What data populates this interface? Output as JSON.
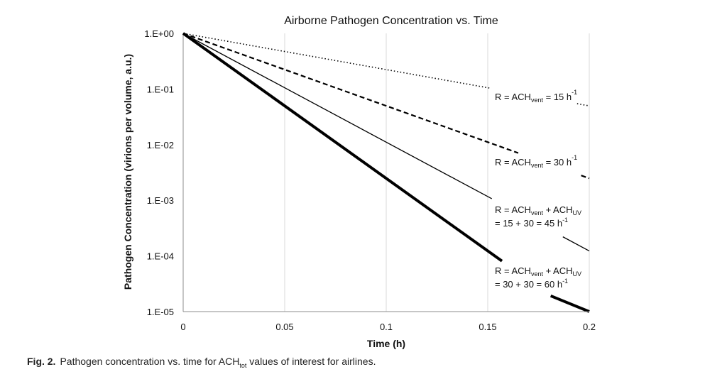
{
  "caption": {
    "label": "Fig. 2.",
    "text_before": "Pathogen concentration vs. time for ACH",
    "text_sub": "tot",
    "text_after": " values of interest for airlines."
  },
  "chart_data": {
    "type": "line",
    "title": "Airborne Pathogen Concentration vs. Time",
    "xlabel": "Time (h)",
    "ylabel": "Pathogen Concentration (virions per volume, a.u.)",
    "xlim": [
      0,
      0.2
    ],
    "ylim": [
      1e-05,
      1
    ],
    "y_scale": "log",
    "x_ticks": [
      0,
      0.05,
      0.1,
      0.15,
      0.2
    ],
    "x_tick_labels": [
      "0",
      "0.05",
      "0.1",
      "0.15",
      "0.2"
    ],
    "y_ticks": [
      1,
      0.1,
      0.01,
      0.001,
      0.0001,
      1e-05
    ],
    "y_tick_labels": [
      "1.E+00",
      "1.E-01",
      "1.E-02",
      "1.E-03",
      "1.E-04",
      "1.E-05"
    ],
    "grid": "vertical",
    "series": [
      {
        "rate": 15,
        "style": "dotted",
        "width": 1.6,
        "x": [
          0,
          0.2
        ],
        "y": [
          1,
          0.0498
        ]
      },
      {
        "rate": 30,
        "style": "dashed",
        "width": 2.2,
        "x": [
          0,
          0.2
        ],
        "y": [
          1,
          0.00248
        ]
      },
      {
        "rate": 45,
        "style": "solid",
        "width": 1.3,
        "x": [
          0,
          0.2
        ],
        "y": [
          1,
          0.000123
        ]
      },
      {
        "rate": 60,
        "style": "solid",
        "width": 4,
        "x": [
          0,
          0.2
        ],
        "y": [
          1,
          6.14e-06
        ]
      }
    ],
    "annotations": [
      {
        "line1": "R = ACH",
        "sub1": "vent",
        "mid1": " = 15 h",
        "sup1": "-1",
        "line2": ""
      },
      {
        "line1": "R = ACH",
        "sub1": "vent",
        "mid1": " = 30 h",
        "sup1": "-1",
        "line2": ""
      },
      {
        "line1": "R = ACH",
        "sub1": "vent",
        "mid1": " + ACH",
        "sub2": "UV",
        "line2": "= 15 + 30 = 45 h",
        "sup2": "-1"
      },
      {
        "line1": "R = ACH",
        "sub1": "vent",
        "mid1": " + ACH",
        "sub2": "UV",
        "line2": "= 30 + 30 = 60 h",
        "sup2": "-1"
      }
    ],
    "colors": {
      "line": "#000000",
      "grid": "#d9d9d9",
      "axis": "#8c8c8c"
    }
  }
}
